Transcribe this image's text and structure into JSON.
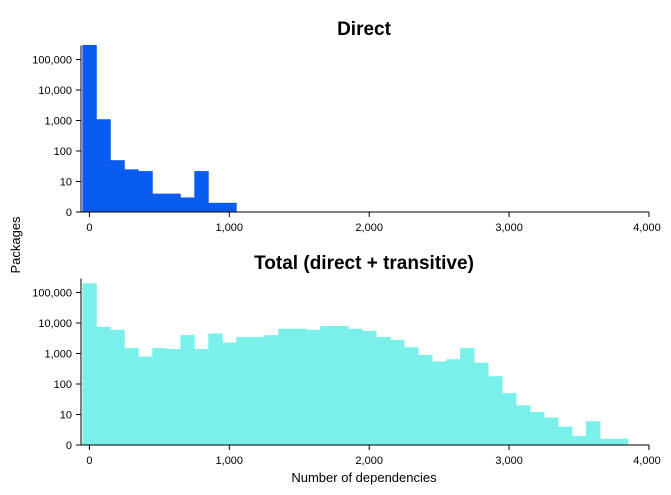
{
  "ylabel": "Packages",
  "xlabel": "Number of dependencies",
  "chart_data": [
    {
      "type": "bar",
      "title": "Direct",
      "color": "#0A5CF0",
      "y_scale": "log",
      "xlim": [
        -60,
        4000
      ],
      "y_ticks": [
        "0",
        "10",
        "100",
        "1,000",
        "10,000",
        "100,000"
      ],
      "x_ticks": [
        "0",
        "1,000",
        "2,000",
        "3,000",
        "4,000"
      ],
      "bin_width": 100,
      "bins": [
        {
          "x": -50,
          "count": 300000
        },
        {
          "x": 50,
          "count": 1100
        },
        {
          "x": 150,
          "count": 50
        },
        {
          "x": 250,
          "count": 25
        },
        {
          "x": 350,
          "count": 22
        },
        {
          "x": 450,
          "count": 4
        },
        {
          "x": 550,
          "count": 4
        },
        {
          "x": 650,
          "count": 3
        },
        {
          "x": 750,
          "count": 22
        },
        {
          "x": 850,
          "count": 2
        },
        {
          "x": 950,
          "count": 2
        }
      ]
    },
    {
      "type": "bar",
      "title": "Total (direct + transitive)",
      "color": "#7AF0EA",
      "y_scale": "log",
      "xlim": [
        -60,
        4000
      ],
      "y_ticks": [
        "0",
        "10",
        "100",
        "1,000",
        "10,000",
        "100,000"
      ],
      "x_ticks": [
        "0",
        "1,000",
        "2,000",
        "3,000",
        "4,000"
      ],
      "bin_width": 100,
      "bins": [
        {
          "x": -50,
          "count": 200000
        },
        {
          "x": 50,
          "count": 7500
        },
        {
          "x": 150,
          "count": 6000
        },
        {
          "x": 250,
          "count": 1500
        },
        {
          "x": 350,
          "count": 800
        },
        {
          "x": 450,
          "count": 1500
        },
        {
          "x": 550,
          "count": 1400
        },
        {
          "x": 650,
          "count": 4000
        },
        {
          "x": 750,
          "count": 1400
        },
        {
          "x": 850,
          "count": 4500
        },
        {
          "x": 950,
          "count": 2300
        },
        {
          "x": 1050,
          "count": 3500
        },
        {
          "x": 1150,
          "count": 3500
        },
        {
          "x": 1250,
          "count": 4000
        },
        {
          "x": 1350,
          "count": 6500
        },
        {
          "x": 1450,
          "count": 6500
        },
        {
          "x": 1550,
          "count": 6000
        },
        {
          "x": 1650,
          "count": 8000
        },
        {
          "x": 1750,
          "count": 8000
        },
        {
          "x": 1850,
          "count": 6500
        },
        {
          "x": 1950,
          "count": 5500
        },
        {
          "x": 2050,
          "count": 3500
        },
        {
          "x": 2150,
          "count": 2800
        },
        {
          "x": 2250,
          "count": 1600
        },
        {
          "x": 2350,
          "count": 900
        },
        {
          "x": 2450,
          "count": 550
        },
        {
          "x": 2550,
          "count": 650
        },
        {
          "x": 2650,
          "count": 1500
        },
        {
          "x": 2750,
          "count": 500
        },
        {
          "x": 2850,
          "count": 180
        },
        {
          "x": 2950,
          "count": 50
        },
        {
          "x": 3050,
          "count": 20
        },
        {
          "x": 3150,
          "count": 12
        },
        {
          "x": 3250,
          "count": 8
        },
        {
          "x": 3350,
          "count": 4
        },
        {
          "x": 3450,
          "count": 2
        },
        {
          "x": 3550,
          "count": 6
        },
        {
          "x": 3650,
          "count": 1.6
        },
        {
          "x": 3750,
          "count": 1.6
        }
      ]
    }
  ]
}
